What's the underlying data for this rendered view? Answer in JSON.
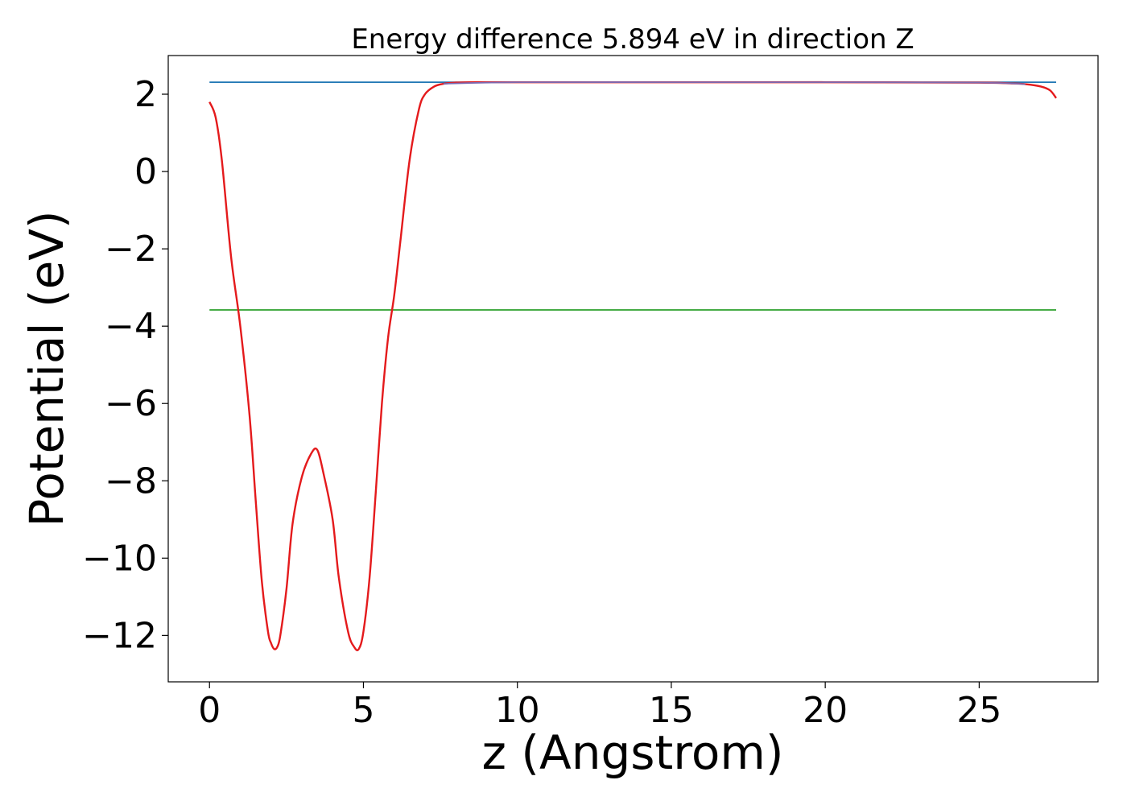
{
  "chart_data": {
    "type": "line",
    "title": "Energy difference 5.894 eV in direction Z",
    "xlabel": "z (Angstrom)",
    "ylabel": "Potential (eV)",
    "xlim": [
      -1.34,
      28.86
    ],
    "ylim": [
      -13.2,
      3.0
    ],
    "xticks": [
      0,
      5,
      10,
      15,
      20,
      25
    ],
    "xtick_labels": [
      "0",
      "5",
      "10",
      "15",
      "20",
      "25"
    ],
    "yticks": [
      2,
      0,
      -2,
      -4,
      -6,
      -8,
      -10,
      -12
    ],
    "ytick_labels": [
      "2",
      "0",
      "−2",
      "−4",
      "−6",
      "−8",
      "−10",
      "−12"
    ],
    "grid": false,
    "series": [
      {
        "color": "#1f77b4",
        "x": [
          0,
          27.5
        ],
        "y": [
          2.31,
          2.31
        ]
      },
      {
        "color": "#2ca02c",
        "x": [
          0,
          27.5
        ],
        "y": [
          -3.58,
          -3.58
        ]
      },
      {
        "color": "#e41a1c",
        "x": [
          0,
          0.2,
          0.4,
          0.7,
          1.0,
          1.3,
          1.5,
          1.7,
          1.9,
          2.0,
          2.1,
          2.2,
          2.3,
          2.5,
          2.7,
          3.0,
          3.3,
          3.5,
          3.7,
          4.0,
          4.2,
          4.5,
          4.7,
          4.85,
          5.0,
          5.2,
          5.4,
          5.6,
          5.8,
          6.0,
          6.2,
          6.5,
          6.8,
          7.0,
          7.3,
          7.6,
          8.0,
          8.5,
          9.0,
          10.0,
          15.0,
          20.0,
          25.0,
          26.0,
          26.5,
          27.0,
          27.3,
          27.5
        ],
        "y": [
          1.8,
          1.4,
          0.3,
          -2.2,
          -4.0,
          -6.3,
          -8.5,
          -10.6,
          -11.9,
          -12.2,
          -12.35,
          -12.3,
          -12.0,
          -10.8,
          -9.1,
          -7.9,
          -7.3,
          -7.2,
          -7.8,
          -9.0,
          -10.5,
          -11.9,
          -12.3,
          -12.35,
          -11.9,
          -10.5,
          -8.3,
          -6.0,
          -4.3,
          -3.2,
          -1.8,
          0.3,
          1.6,
          2.0,
          2.2,
          2.27,
          2.3,
          2.31,
          2.31,
          2.31,
          2.31,
          2.31,
          2.3,
          2.28,
          2.26,
          2.2,
          2.1,
          1.9
        ]
      },
      {
        "color": "#7b68b0",
        "x": [
          7.6,
          10.0,
          15.0,
          20.0,
          25.0,
          26.5
        ],
        "y": [
          2.27,
          2.31,
          2.31,
          2.31,
          2.3,
          2.26
        ]
      }
    ]
  }
}
